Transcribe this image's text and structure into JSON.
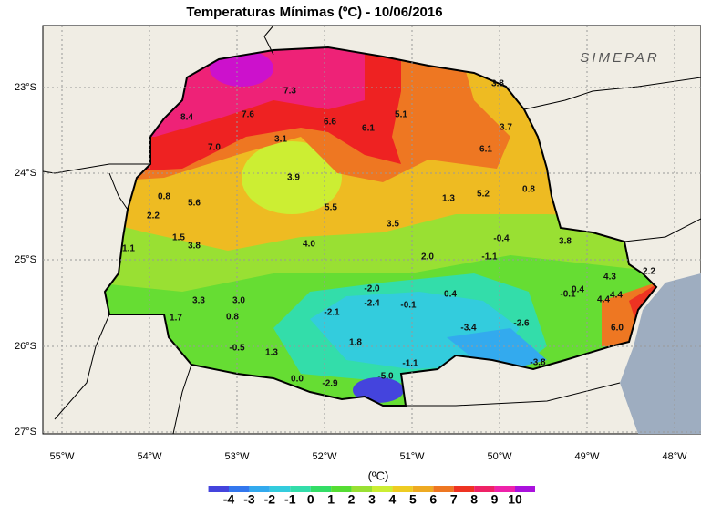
{
  "title": "Temperaturas Mínimas (ºC) - 10/06/2016",
  "logo": "SIMEPAR",
  "lat_labels": [
    "23°S",
    "24°S",
    "25°S",
    "26°S",
    "27°S"
  ],
  "lon_labels": [
    "55°W",
    "54°W",
    "53°W",
    "52°W",
    "51°W",
    "50°W",
    "49°W",
    "48°W"
  ],
  "stations": [
    "7.3",
    "8.4",
    "7.6",
    "6.6",
    "6.1",
    "5.1",
    "3.8",
    "3.7",
    "6.1",
    "3.1",
    "7.0",
    "3.9",
    "0.8",
    "5.6",
    "5.5",
    "1.3",
    "5.2",
    "0.8",
    "2.2",
    "3.5",
    "1.5",
    "3.8",
    "4.0",
    "-0.4",
    "3.8",
    "1.1",
    "2.0",
    "-1.1",
    "4.3",
    "2.2",
    "-2.0",
    "-0.1",
    "0.4",
    "3.3",
    "3.0",
    "-2.4",
    "-0.1",
    "0.4",
    "4.4",
    "4.4",
    "1.7",
    "0.8",
    "-2.1",
    "-2.6",
    "-3.4",
    "6.0",
    "-0.5",
    "1.8",
    "1.3",
    "-1.1",
    "-3.8",
    "0.0",
    "-2.9",
    "-5.0"
  ],
  "colorbar": {
    "unit": "(ºC)",
    "ticks": [
      -4,
      -3,
      -2,
      -1,
      0,
      1,
      2,
      3,
      4,
      5,
      6,
      7,
      8,
      9,
      10
    ],
    "colors": [
      "#4444dd",
      "#3377ee",
      "#33aaee",
      "#33ccdd",
      "#33ddaa",
      "#33dd66",
      "#55dd33",
      "#99e033",
      "#ccee33",
      "#eecc22",
      "#eeaa22",
      "#ee7722",
      "#ee3322",
      "#ee2266",
      "#ee22aa",
      "#aa11dd"
    ]
  }
}
